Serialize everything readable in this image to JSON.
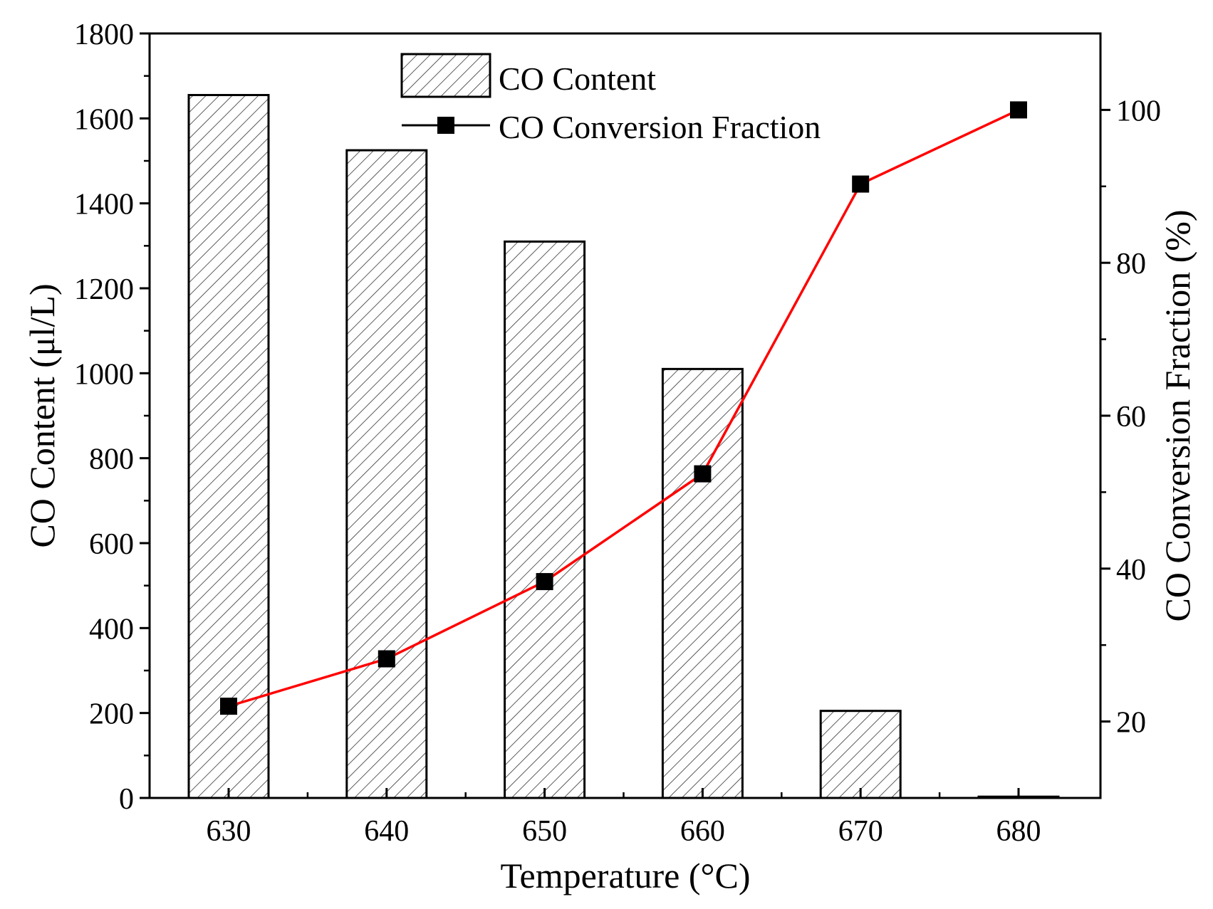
{
  "chart_data": {
    "type": "bar",
    "title": "",
    "xlabel": "Temperature (°C)",
    "ylabel": "CO Content (μl/L)",
    "y2label": "CO Conversion Fraction (%)",
    "categories": [
      "630",
      "640",
      "650",
      "660",
      "670",
      "680"
    ],
    "series": [
      {
        "name": "CO Content",
        "type": "bar",
        "axis": "left",
        "pattern": "diagonal-hatch",
        "values": [
          1655,
          1525,
          1310,
          1010,
          205,
          3
        ]
      },
      {
        "name": "CO Conversion Fraction",
        "type": "line",
        "axis": "right",
        "color": "#ff0000",
        "marker": "square",
        "values": [
          22,
          28.2,
          38.3,
          52.4,
          90.3,
          100
        ]
      }
    ],
    "ylim": [
      0,
      1800
    ],
    "yticks": [
      "0",
      "200",
      "400",
      "600",
      "800",
      "1000",
      "1200",
      "1400",
      "1600",
      "1800"
    ],
    "y2lim": [
      10,
      110
    ],
    "y2ticks": [
      "20",
      "40",
      "60",
      "80",
      "100"
    ],
    "legend": "top-center",
    "grid": false
  }
}
